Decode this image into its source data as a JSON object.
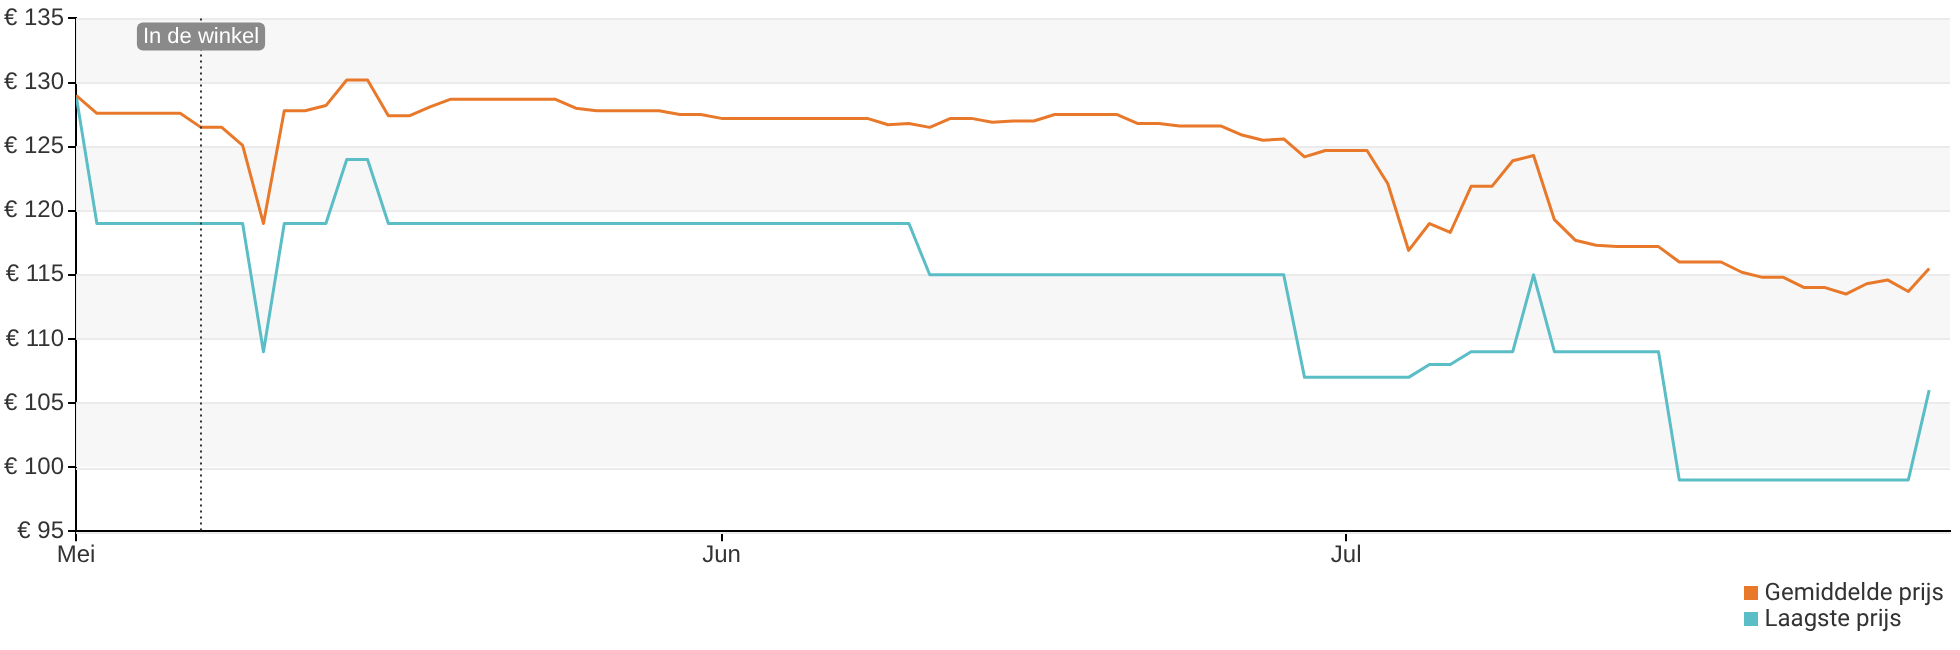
{
  "chart_data": {
    "type": "line",
    "x": [
      "--05-01",
      "--05-02",
      "--05-03",
      "--05-04",
      "--05-05",
      "--05-06",
      "--05-07",
      "--05-08",
      "--05-09",
      "--05-10",
      "--05-11",
      "--05-12",
      "--05-13",
      "--05-14",
      "--05-15",
      "--05-16",
      "--05-17",
      "--05-18",
      "--05-19",
      "--05-20",
      "--05-21",
      "--05-22",
      "--05-23",
      "--05-24",
      "--05-25",
      "--05-26",
      "--05-27",
      "--05-28",
      "--05-29",
      "--05-30",
      "--05-31",
      "--06-01",
      "--06-02",
      "--06-03",
      "--06-04",
      "--06-05",
      "--06-06",
      "--06-07",
      "--06-08",
      "--06-09",
      "--06-10",
      "--06-11",
      "--06-12",
      "--06-13",
      "--06-14",
      "--06-15",
      "--06-16",
      "--06-17",
      "--06-18",
      "--06-19",
      "--06-20",
      "--06-21",
      "--06-22",
      "--06-23",
      "--06-24",
      "--06-25",
      "--06-26",
      "--06-27",
      "--06-28",
      "--06-29",
      "--06-30",
      "--07-01",
      "--07-02",
      "--07-03",
      "--07-04",
      "--07-05",
      "--07-06",
      "--07-07",
      "--07-08",
      "--07-09",
      "--07-10",
      "--07-11",
      "--07-12",
      "--07-13",
      "--07-14",
      "--07-15",
      "--07-16",
      "--07-17",
      "--07-18",
      "--07-19",
      "--07-20",
      "--07-21",
      "--07-22",
      "--07-23",
      "--07-24",
      "--07-25",
      "--07-26",
      "--07-27",
      "--07-28",
      "--07-29"
    ],
    "series": [
      {
        "name": "Gemiddelde prijs",
        "color": "#e8782a",
        "values": [
          129,
          127.6,
          127.6,
          127.6,
          127.6,
          127.6,
          126.5,
          126.5,
          125.1,
          119,
          127.8,
          127.8,
          128.2,
          130.2,
          130.2,
          127.4,
          127.4,
          128.1,
          128.7,
          128.7,
          128.7,
          128.7,
          128.7,
          128.7,
          128.0,
          127.8,
          127.8,
          127.8,
          127.8,
          127.5,
          127.5,
          127.2,
          127.2,
          127.2,
          127.2,
          127.2,
          127.2,
          127.2,
          127.2,
          126.7,
          126.8,
          126.5,
          127.2,
          127.2,
          126.9,
          127.0,
          127.0,
          127.5,
          127.5,
          127.5,
          127.5,
          126.8,
          126.8,
          126.6,
          126.6,
          126.6,
          125.9,
          125.5,
          125.6,
          124.2,
          124.7,
          124.7,
          124.7,
          122.1,
          116.9,
          119.0,
          118.3,
          121.9,
          121.9,
          123.9,
          124.3,
          119.3,
          117.7,
          117.3,
          117.2,
          117.2,
          117.2,
          116.0,
          116.0,
          116.0,
          115.2,
          114.8,
          114.8,
          114.0,
          114.0,
          113.5,
          114.3,
          114.6,
          113.7,
          115.5
        ]
      },
      {
        "name": "Laagste prijs",
        "color": "#5bbdc6",
        "values": [
          129,
          119,
          119,
          119,
          119,
          119,
          119,
          119,
          119,
          109,
          119,
          119,
          119,
          124,
          124,
          119,
          119,
          119,
          119,
          119,
          119,
          119,
          119,
          119,
          119,
          119,
          119,
          119,
          119,
          119,
          119,
          119,
          119,
          119,
          119,
          119,
          119,
          119,
          119,
          119,
          119,
          115,
          115,
          115,
          115,
          115,
          115,
          115,
          115,
          115,
          115,
          115,
          115,
          115,
          115,
          115,
          115,
          115,
          115,
          107,
          107,
          107,
          107,
          107,
          107,
          108,
          108,
          109,
          109,
          109,
          115,
          109,
          109,
          109,
          109,
          109,
          109,
          99,
          99,
          99,
          99,
          99,
          99,
          99,
          99,
          99,
          99,
          99,
          99,
          106
        ]
      }
    ],
    "xlim": [
      "--05-01",
      "--07-30"
    ],
    "xticks": [
      {
        "value": "--05-01",
        "label": "Mei"
      },
      {
        "value": "--06-01",
        "label": "Jun"
      },
      {
        "value": "--07-01",
        "label": "Jul"
      }
    ],
    "ylim": [
      95,
      135
    ],
    "yticks": [
      {
        "value": 95,
        "label": "€ 95"
      },
      {
        "value": 100,
        "label": "€ 100"
      },
      {
        "value": 105,
        "label": "€ 105"
      },
      {
        "value": 110,
        "label": "€ 110"
      },
      {
        "value": 115,
        "label": "€ 115"
      },
      {
        "value": 120,
        "label": "€ 120"
      },
      {
        "value": 125,
        "label": "€ 125"
      },
      {
        "value": 130,
        "label": "€ 130"
      },
      {
        "value": 135,
        "label": "€ 135"
      }
    ],
    "ref_lines": [
      {
        "axis": "x",
        "value": "--05-07",
        "label": "In de winkel",
        "color": "#333333",
        "line_style": "dotted"
      }
    ],
    "grid": "y",
    "legend": "bottom right",
    "marker": "none",
    "line_style": "solid"
  }
}
